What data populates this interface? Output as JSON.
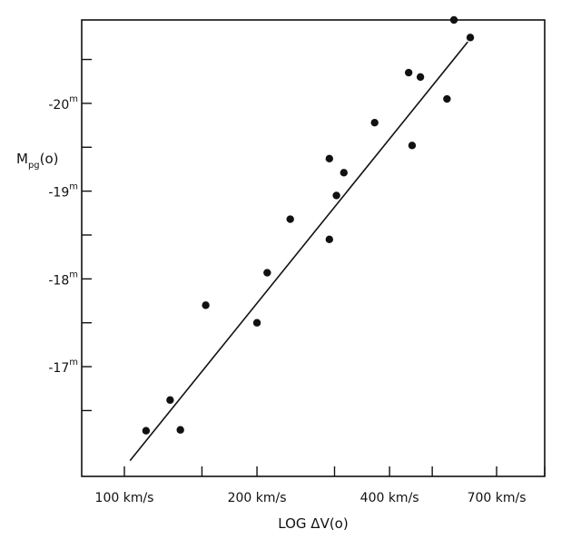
{
  "chart_data": {
    "type": "scatter",
    "title": "",
    "xlabel": "LOG ΔV(o)",
    "ylabel_main": "M",
    "ylabel_sub": "pg",
    "ylabel_tail": "(o)",
    "x_scale": "log",
    "x_unit": "km/s",
    "xlim": [
      80,
      900
    ],
    "ylim": [
      -15.75,
      -20.95
    ],
    "x_ticks": [
      {
        "value": 100,
        "label": "100 km/s"
      },
      {
        "value": 200,
        "label": "200 km/s"
      },
      {
        "value": 400,
        "label": "400 km/s"
      },
      {
        "value": 700,
        "label": "700 km/s"
      }
    ],
    "x_minor_ticks": [
      100,
      150,
      200,
      300,
      400,
      500,
      700,
      900
    ],
    "y_ticks": [
      {
        "value": -17,
        "label": "-17",
        "sup": "m"
      },
      {
        "value": -18,
        "label": "-18",
        "sup": "m"
      },
      {
        "value": -19,
        "label": "-19",
        "sup": "m"
      },
      {
        "value": -20,
        "label": "-20",
        "sup": "m"
      }
    ],
    "y_minor_ticks": [
      -16.5,
      -17.5,
      -18.5,
      -19.5,
      -20.5
    ],
    "grid": false,
    "points": [
      {
        "x": 112,
        "y": -16.27
      },
      {
        "x": 127,
        "y": -16.62
      },
      {
        "x": 134,
        "y": -16.28
      },
      {
        "x": 153,
        "y": -17.7
      },
      {
        "x": 200,
        "y": -17.5
      },
      {
        "x": 211,
        "y": -18.07
      },
      {
        "x": 238,
        "y": -18.68
      },
      {
        "x": 292,
        "y": -18.45
      },
      {
        "x": 292,
        "y": -19.37
      },
      {
        "x": 303,
        "y": -18.95
      },
      {
        "x": 315,
        "y": -19.21
      },
      {
        "x": 370,
        "y": -19.78
      },
      {
        "x": 442,
        "y": -20.35
      },
      {
        "x": 450,
        "y": -19.52
      },
      {
        "x": 470,
        "y": -20.3
      },
      {
        "x": 540,
        "y": -20.05
      },
      {
        "x": 560,
        "y": -20.95
      },
      {
        "x": 610,
        "y": -20.75
      }
    ],
    "fit_line": {
      "x": [
        103,
        602
      ],
      "y": [
        -15.93,
        -20.7
      ]
    }
  }
}
